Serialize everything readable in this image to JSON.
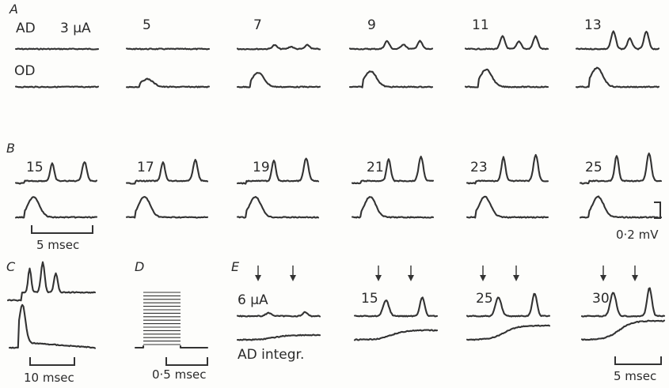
{
  "panels": {
    "A": {
      "label": "A",
      "row_labels": [
        "AD",
        "OD"
      ],
      "stimulus_labels": [
        "3 μA",
        "5",
        "7",
        "9",
        "11",
        "13"
      ]
    },
    "B": {
      "label": "B",
      "stimulus_labels": [
        "15",
        "17",
        "19",
        "21",
        "23",
        "25"
      ],
      "time_scale": "5 msec",
      "voltage_scale": "0·2 mV"
    },
    "C": {
      "label": "C",
      "time_scale": "10 msec"
    },
    "D": {
      "label": "D",
      "time_scale": "0·5 msec"
    },
    "E": {
      "label": "E",
      "stimulus_labels": [
        "6 μA",
        "15",
        "25",
        "30"
      ],
      "trace_label": "AD  integr.",
      "time_scale": "5 msec"
    }
  }
}
